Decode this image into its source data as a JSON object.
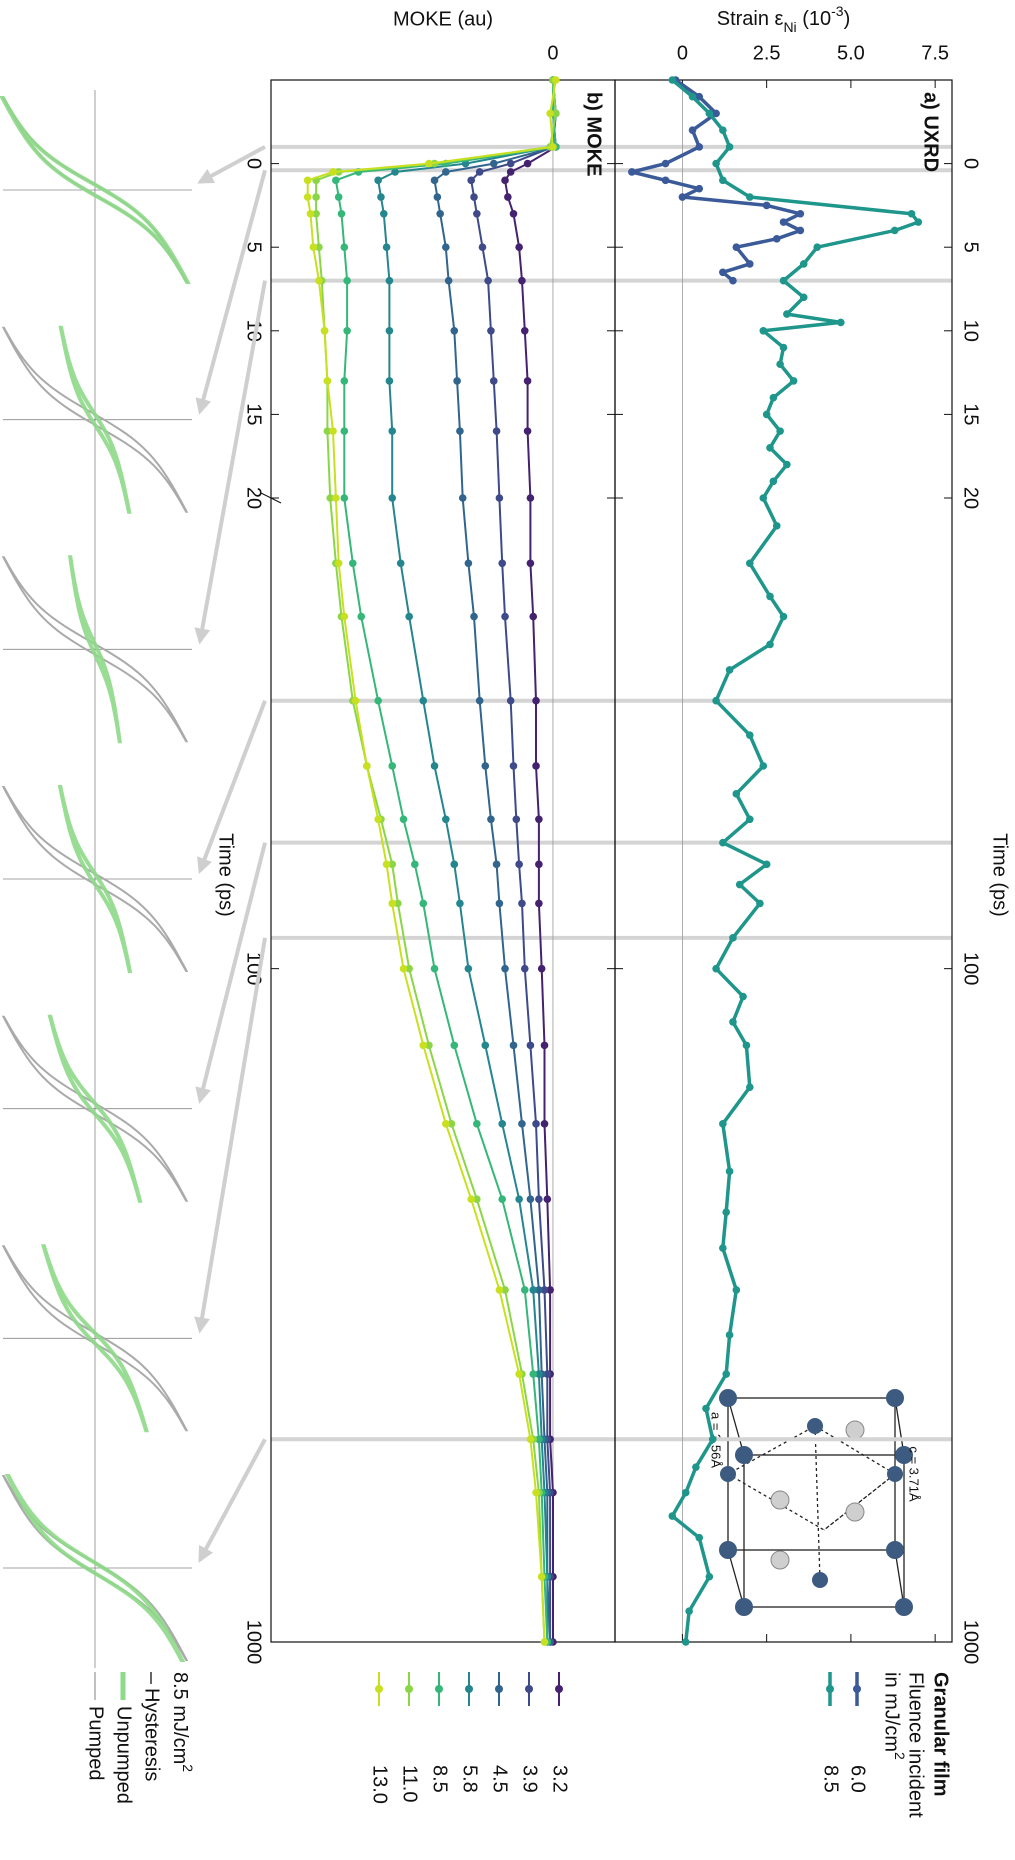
{
  "chart_data": [
    {
      "type": "line",
      "title": "a) UXRD",
      "xlabel": "Time (ps)",
      "ylabel": [
        "Strain ε",
        "Ni",
        " (10",
        "-3",
        ")"
      ],
      "xscale": "linear-log",
      "xbreak": 20,
      "xlim": [
        -5,
        1000
      ],
      "xticks": [
        0,
        5,
        10,
        15,
        20,
        100,
        1000
      ],
      "ylim": [
        -2,
        8
      ],
      "yticks": [
        0,
        2.5,
        {
          "value": 5,
          "label": "5.0"
        },
        7.5
      ],
      "legend_title": [
        "Granular film",
        "Fluence incident",
        "in mJ/cm",
        "2"
      ],
      "inset_labels": [
        "c = 3.71Å",
        "a = 3.56Å"
      ],
      "series": [
        {
          "name": "6.0",
          "color": "#3a5a99",
          "x": [
            -5,
            -4,
            -3,
            -2,
            -1,
            0,
            0.5,
            1,
            1.5,
            2,
            2.5,
            3,
            3.5,
            4,
            4.5,
            5,
            6,
            6.5,
            7
          ],
          "values": [
            -0.2,
            0.5,
            1.0,
            0.3,
            0.5,
            -0.5,
            -1.5,
            -0.5,
            0.5,
            0,
            2.5,
            3.5,
            3.0,
            3.5,
            2.8,
            1.6,
            2.0,
            1.2,
            1.5
          ]
        },
        {
          "name": "8.5",
          "color": "#1f968b",
          "x": [
            -5,
            -4,
            -3,
            -2,
            -1,
            0,
            1,
            2,
            3,
            3.5,
            4,
            5,
            6,
            7,
            8,
            9,
            9.5,
            10,
            11,
            12,
            13,
            14,
            15,
            16,
            17,
            18,
            19,
            20,
            22,
            25,
            28,
            30,
            33,
            36,
            40,
            45,
            50,
            55,
            60,
            65,
            70,
            75,
            80,
            90,
            100,
            110,
            120,
            130,
            150,
            170,
            200,
            230,
            260,
            300,
            350,
            400,
            450,
            500,
            550,
            600,
            650,
            700,
            800,
            900,
            1000
          ],
          "values": [
            -0.3,
            0.3,
            0.8,
            1.2,
            1.4,
            1.0,
            1.2,
            2.0,
            6.8,
            7.0,
            6.3,
            4.0,
            3.6,
            3.0,
            3.6,
            3.1,
            4.7,
            2.4,
            3.0,
            2.9,
            3.3,
            2.7,
            2.5,
            2.9,
            2.6,
            3.1,
            2.7,
            2.4,
            2.8,
            2.0,
            2.6,
            3.0,
            2.6,
            1.4,
            1.0,
            2.0,
            2.4,
            1.6,
            2.0,
            1.2,
            2.5,
            1.7,
            2.3,
            1.5,
            1.0,
            1.8,
            1.5,
            1.9,
            2.0,
            1.2,
            1.4,
            1.3,
            1.2,
            1.6,
            1.4,
            1.3,
            0.7,
            0.9,
            0.4,
            0.1,
            -0.3,
            0.5,
            0.8,
            0.2,
            0.1
          ]
        }
      ]
    },
    {
      "type": "line",
      "title": "b) MOKE",
      "xlabel": "Time (ps)",
      "ylabel": "MOKE (au)",
      "xscale": "linear-log",
      "xbreak": 20,
      "xlim": [
        -5,
        1000
      ],
      "xticks": [
        0,
        5,
        10,
        15,
        20,
        100,
        1000
      ],
      "ylim": [
        -1,
        0.22
      ],
      "yticks": [
        0
      ],
      "highlight_times": [
        -1,
        0.4,
        7,
        40,
        65,
        90,
        500
      ],
      "x": [
        -5,
        -3,
        -1,
        0,
        0.5,
        1,
        2,
        3,
        5,
        7,
        10,
        13,
        16,
        20,
        25,
        30,
        40,
        50,
        60,
        70,
        80,
        100,
        130,
        170,
        220,
        300,
        400,
        500,
        600,
        800,
        1000
      ],
      "series": [
        {
          "name": "3.2",
          "color": "#45226f",
          "values": [
            0,
            0,
            0.01,
            -0.09,
            -0.15,
            -0.17,
            -0.16,
            -0.14,
            -0.12,
            -0.11,
            -0.1,
            -0.09,
            -0.09,
            -0.08,
            -0.08,
            -0.07,
            -0.06,
            -0.06,
            -0.05,
            -0.05,
            -0.05,
            -0.04,
            -0.03,
            -0.03,
            -0.02,
            -0.01,
            -0.01,
            -0.01,
            0,
            0,
            0
          ]
        },
        {
          "name": "3.9",
          "color": "#3e4a89",
          "values": [
            0,
            0.01,
            0,
            -0.15,
            -0.26,
            -0.29,
            -0.28,
            -0.27,
            -0.25,
            -0.23,
            -0.22,
            -0.21,
            -0.2,
            -0.19,
            -0.18,
            -0.17,
            -0.15,
            -0.14,
            -0.13,
            -0.12,
            -0.11,
            -0.1,
            -0.08,
            -0.06,
            -0.05,
            -0.03,
            -0.02,
            -0.02,
            -0.01,
            -0.01,
            -0.01
          ]
        },
        {
          "name": "4.5",
          "color": "#31658e",
          "values": [
            0,
            0,
            0.01,
            -0.21,
            -0.38,
            -0.42,
            -0.41,
            -0.4,
            -0.38,
            -0.37,
            -0.35,
            -0.34,
            -0.33,
            -0.32,
            -0.3,
            -0.28,
            -0.26,
            -0.24,
            -0.22,
            -0.2,
            -0.19,
            -0.17,
            -0.14,
            -0.11,
            -0.08,
            -0.05,
            -0.04,
            -0.03,
            -0.02,
            -0.02,
            -0.01
          ]
        },
        {
          "name": "5.8",
          "color": "#24868e",
          "values": [
            0,
            0.01,
            0,
            -0.31,
            -0.56,
            -0.62,
            -0.61,
            -0.6,
            -0.59,
            -0.58,
            -0.58,
            -0.58,
            -0.57,
            -0.57,
            -0.54,
            -0.51,
            -0.46,
            -0.42,
            -0.38,
            -0.35,
            -0.33,
            -0.3,
            -0.24,
            -0.18,
            -0.12,
            -0.07,
            -0.05,
            -0.04,
            -0.03,
            -0.02,
            -0.02
          ]
        },
        {
          "name": "8.5",
          "color": "#35b779",
          "values": [
            0,
            0,
            0.01,
            -0.38,
            -0.69,
            -0.77,
            -0.76,
            -0.75,
            -0.74,
            -0.73,
            -0.73,
            -0.74,
            -0.74,
            -0.74,
            -0.71,
            -0.68,
            -0.62,
            -0.57,
            -0.53,
            -0.49,
            -0.46,
            -0.42,
            -0.35,
            -0.27,
            -0.18,
            -0.1,
            -0.07,
            -0.05,
            -0.04,
            -0.03,
            -0.02
          ]
        },
        {
          "name": "11.0",
          "color": "#8bd646",
          "values": [
            0,
            0.01,
            -0.01,
            -0.42,
            -0.76,
            -0.84,
            -0.84,
            -0.84,
            -0.83,
            -0.82,
            -0.81,
            -0.8,
            -0.8,
            -0.79,
            -0.77,
            -0.75,
            -0.71,
            -0.66,
            -0.61,
            -0.57,
            -0.55,
            -0.51,
            -0.44,
            -0.36,
            -0.27,
            -0.17,
            -0.11,
            -0.07,
            -0.05,
            -0.04,
            -0.03
          ]
        },
        {
          "name": "13.0",
          "color": "#c8e020",
          "values": [
            0.01,
            -0.01,
            0,
            -0.44,
            -0.78,
            -0.87,
            -0.87,
            -0.86,
            -0.85,
            -0.83,
            -0.81,
            -0.8,
            -0.78,
            -0.77,
            -0.76,
            -0.74,
            -0.7,
            -0.66,
            -0.62,
            -0.59,
            -0.57,
            -0.53,
            -0.46,
            -0.38,
            -0.29,
            -0.19,
            -0.12,
            -0.08,
            -0.06,
            -0.04,
            -0.03
          ]
        }
      ]
    }
  ],
  "hysteresis": {
    "title": [
      "8.5 mJ/cm",
      "2"
    ],
    "labels": [
      "Hysteresis",
      "Unpumped",
      "Pumped"
    ],
    "colors": [
      "#333333",
      "#8ed98a",
      "#aaaaaa"
    ]
  }
}
